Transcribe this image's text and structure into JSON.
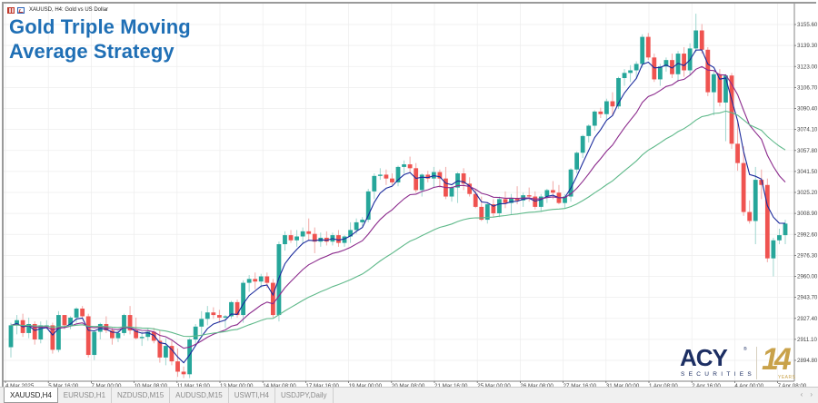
{
  "window": {
    "symbol_title": "XAUUSD, H4:  Gold vs US Dollar",
    "headline_line1": "Gold Triple Moving",
    "headline_line2": "Average Strategy"
  },
  "logo": {
    "brand": "ACY",
    "registered": "®",
    "subtitle": "SECURITIES",
    "anniversary": "14",
    "anniversary_label": "YEARS"
  },
  "tabs": [
    {
      "label": "XAUUSD,H4",
      "active": true
    },
    {
      "label": "EURUSD,H1",
      "active": false
    },
    {
      "label": "NZDUSD,M15",
      "active": false
    },
    {
      "label": "AUDUSD,M15",
      "active": false
    },
    {
      "label": "USWTI,H4",
      "active": false
    },
    {
      "label": "USDJPY,Daily",
      "active": false
    }
  ],
  "tab_scroll": {
    "left": "‹",
    "right": "›"
  },
  "colors": {
    "bull": "#26a69a",
    "bear": "#ef5350",
    "ma_fast": "#1a2a9c",
    "ma_mid": "#8b2a8c",
    "ma_slow": "#5fb98a",
    "grid": "#eeeeee",
    "axis": "#9a9a9a",
    "headline": "#1f6fb5"
  },
  "chart_data": {
    "type": "candlestick",
    "title": "XAUUSD, H4: Gold vs US Dollar",
    "symbol": "XAUUSD",
    "timeframe": "H4",
    "xlabel": "",
    "ylabel": "",
    "ylim": [
      2880.0,
      3165.0
    ],
    "y_ticks": [
      3155.6,
      3139.3,
      3123.0,
      3106.7,
      3090.4,
      3074.1,
      3057.8,
      3041.5,
      3025.2,
      3008.9,
      2992.6,
      2976.3,
      2960.0,
      2943.7,
      2927.4,
      2911.1,
      2894.8
    ],
    "x_ticks": [
      "4 Mar 2025",
      "5 Mar 16:00",
      "7 Mar 00:00",
      "10 Mar 08:00",
      "11 Mar 16:00",
      "13 Mar 00:00",
      "14 Mar 08:00",
      "17 Mar 16:00",
      "19 Mar 00:00",
      "20 Mar 08:00",
      "21 Mar 16:00",
      "25 Mar 00:00",
      "26 Mar 08:00",
      "27 Mar 16:00",
      "31 Mar 00:00",
      "1 Apr 08:00",
      "2 Apr 16:00",
      "4 Apr 00:00",
      "7 Apr 08:00"
    ],
    "grid": true,
    "series": [
      {
        "name": "Price (OHLC candles)",
        "type": "candlestick"
      },
      {
        "name": "Fast MA",
        "type": "line",
        "color": "#1a2a9c"
      },
      {
        "name": "Medium MA",
        "type": "line",
        "color": "#8b2a8c"
      },
      {
        "name": "Slow MA",
        "type": "line",
        "color": "#5fb98a"
      }
    ],
    "candles": [
      [
        2905,
        2924,
        2897,
        2922
      ],
      [
        2922,
        2930,
        2915,
        2926
      ],
      [
        2926,
        2931,
        2913,
        2916
      ],
      [
        2916,
        2928,
        2912,
        2923
      ],
      [
        2923,
        2925,
        2907,
        2911
      ],
      [
        2911,
        2925,
        2908,
        2922
      ],
      [
        2922,
        2926,
        2919,
        2922
      ],
      [
        2922,
        2924,
        2900,
        2903
      ],
      [
        2903,
        2933,
        2901,
        2930
      ],
      [
        2930,
        2930,
        2919,
        2922
      ],
      [
        2922,
        2929,
        2919,
        2928
      ],
      [
        2928,
        2936,
        2924,
        2935
      ],
      [
        2935,
        2937,
        2928,
        2929
      ],
      [
        2929,
        2931,
        2897,
        2899
      ],
      [
        2899,
        2918,
        2895,
        2917
      ],
      [
        2917,
        2924,
        2911,
        2923
      ],
      [
        2923,
        2929,
        2916,
        2918
      ],
      [
        2918,
        2920,
        2907,
        2912
      ],
      [
        2912,
        2918,
        2909,
        2916
      ],
      [
        2916,
        2931,
        2914,
        2930
      ],
      [
        2930,
        2937,
        2915,
        2918
      ],
      [
        2918,
        2928,
        2911,
        2912
      ],
      [
        2912,
        2917,
        2906,
        2913
      ],
      [
        2913,
        2920,
        2910,
        2917
      ],
      [
        2917,
        2920,
        2908,
        2910
      ],
      [
        2910,
        2918,
        2893,
        2897
      ],
      [
        2897,
        2912,
        2891,
        2906
      ],
      [
        2906,
        2910,
        2891,
        2894
      ],
      [
        2894,
        2904,
        2882,
        2886
      ],
      [
        2886,
        2890,
        2881,
        2884
      ],
      [
        2884,
        2912,
        2881,
        2911
      ],
      [
        2911,
        2923,
        2906,
        2921
      ],
      [
        2921,
        2933,
        2915,
        2927
      ],
      [
        2927,
        2937,
        2922,
        2932
      ],
      [
        2932,
        2936,
        2927,
        2930
      ],
      [
        2930,
        2934,
        2924,
        2928
      ],
      [
        2928,
        2930,
        2920,
        2929
      ],
      [
        2929,
        2941,
        2927,
        2940
      ],
      [
        2940,
        2942,
        2928,
        2930
      ],
      [
        2930,
        2957,
        2924,
        2955
      ],
      [
        2955,
        2961,
        2948,
        2958
      ],
      [
        2958,
        2963,
        2950,
        2956
      ],
      [
        2956,
        2962,
        2951,
        2960
      ],
      [
        2960,
        2963,
        2951,
        2955
      ],
      [
        2955,
        2958,
        2928,
        2930
      ],
      [
        2930,
        2987,
        2925,
        2985
      ],
      [
        2985,
        2995,
        2980,
        2992
      ],
      [
        2992,
        2996,
        2986,
        2988
      ],
      [
        2988,
        2996,
        2983,
        2991
      ],
      [
        2991,
        2998,
        2985,
        2995
      ],
      [
        2995,
        3005,
        2988,
        2993
      ],
      [
        2993,
        2998,
        2978,
        2987
      ],
      [
        2987,
        2994,
        2983,
        2990
      ],
      [
        2990,
        2995,
        2984,
        2987
      ],
      [
        2987,
        2994,
        2984,
        2992
      ],
      [
        2992,
        2996,
        2983,
        2986
      ],
      [
        2986,
        2992,
        2983,
        2991
      ],
      [
        2991,
        3002,
        2986,
        2996
      ],
      [
        2996,
        3005,
        2993,
        3002
      ],
      [
        3002,
        3006,
        2999,
        3004
      ],
      [
        3004,
        3028,
        3002,
        3026
      ],
      [
        3026,
        3040,
        3020,
        3038
      ],
      [
        3038,
        3044,
        3035,
        3039
      ],
      [
        3039,
        3043,
        3031,
        3036
      ],
      [
        3036,
        3040,
        3031,
        3033
      ],
      [
        3033,
        3046,
        3030,
        3045
      ],
      [
        3045,
        3050,
        3040,
        3047
      ],
      [
        3047,
        3053,
        3040,
        3044
      ],
      [
        3044,
        3048,
        3025,
        3027
      ],
      [
        3027,
        3040,
        3022,
        3039
      ],
      [
        3039,
        3042,
        3033,
        3036
      ],
      [
        3036,
        3045,
        3029,
        3041
      ],
      [
        3041,
        3043,
        3029,
        3036
      ],
      [
        3036,
        3045,
        3020,
        3022
      ],
      [
        3022,
        3030,
        3018,
        3029
      ],
      [
        3029,
        3041,
        3017,
        3040
      ],
      [
        3040,
        3044,
        3027,
        3032
      ],
      [
        3032,
        3037,
        3022,
        3024
      ],
      [
        3024,
        3028,
        3013,
        3014
      ],
      [
        3014,
        3022,
        3003,
        3004
      ],
      [
        3004,
        3017,
        3001,
        3016
      ],
      [
        3016,
        3020,
        3006,
        3009
      ],
      [
        3009,
        3022,
        3006,
        3020
      ],
      [
        3020,
        3026,
        3013,
        3017
      ],
      [
        3017,
        3024,
        3008,
        3021
      ],
      [
        3021,
        3030,
        3016,
        3019
      ],
      [
        3019,
        3025,
        3014,
        3023
      ],
      [
        3023,
        3029,
        3018,
        3022
      ],
      [
        3022,
        3026,
        3012,
        3014
      ],
      [
        3014,
        3024,
        3010,
        3022
      ],
      [
        3022,
        3028,
        3017,
        3027
      ],
      [
        3027,
        3034,
        3020,
        3025
      ],
      [
        3025,
        3031,
        3016,
        3017
      ],
      [
        3017,
        3024,
        3013,
        3022
      ],
      [
        3022,
        3044,
        3018,
        3043
      ],
      [
        3043,
        3057,
        3040,
        3056
      ],
      [
        3056,
        3070,
        3052,
        3069
      ],
      [
        3069,
        3078,
        3064,
        3077
      ],
      [
        3077,
        3089,
        3073,
        3088
      ],
      [
        3088,
        3091,
        3083,
        3086
      ],
      [
        3086,
        3098,
        3082,
        3096
      ],
      [
        3096,
        3103,
        3085,
        3092
      ],
      [
        3092,
        3115,
        3090,
        3114
      ],
      [
        3114,
        3121,
        3108,
        3118
      ],
      [
        3118,
        3124,
        3111,
        3120
      ],
      [
        3120,
        3127,
        3114,
        3125
      ],
      [
        3125,
        3148,
        3122,
        3146
      ],
      [
        3146,
        3149,
        3128,
        3130
      ],
      [
        3130,
        3133,
        3111,
        3113
      ],
      [
        3113,
        3125,
        3108,
        3123
      ],
      [
        3123,
        3130,
        3119,
        3128
      ],
      [
        3128,
        3133,
        3114,
        3117
      ],
      [
        3117,
        3135,
        3111,
        3133
      ],
      [
        3133,
        3138,
        3115,
        3120
      ],
      [
        3120,
        3141,
        3116,
        3137
      ],
      [
        3137,
        3164,
        3134,
        3151
      ],
      [
        3151,
        3156,
        3133,
        3136
      ],
      [
        3136,
        3138,
        3100,
        3103
      ],
      [
        3103,
        3119,
        3085,
        3117
      ],
      [
        3117,
        3121,
        3092,
        3095
      ],
      [
        3095,
        3117,
        3065,
        3116
      ],
      [
        3116,
        3118,
        3059,
        3063
      ],
      [
        3063,
        3080,
        3042,
        3048
      ],
      [
        3048,
        3061,
        3007,
        3010
      ],
      [
        3010,
        3019,
        3001,
        3003
      ],
      [
        3003,
        3045,
        2985,
        3035
      ],
      [
        3035,
        3043,
        3020,
        3031
      ],
      [
        3031,
        3036,
        2971,
        2974
      ],
      [
        2974,
        2990,
        2960,
        2988
      ],
      [
        2988,
        2997,
        2985,
        2992
      ],
      [
        2992,
        3004,
        2985,
        3001
      ]
    ]
  }
}
